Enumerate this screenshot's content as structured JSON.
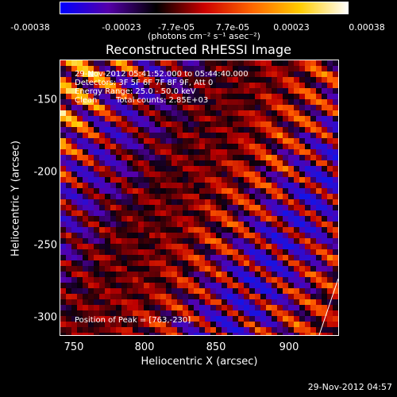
{
  "colorbar": {
    "ticks": [
      "-0.00038",
      "-0.00023",
      "-7.7e-05",
      "7.7e-05",
      "0.00023",
      "0.00038"
    ],
    "tick_values": [
      -0.00038,
      -0.00023,
      -7.7e-05,
      7.7e-05,
      0.00023,
      0.00038
    ],
    "range": [
      -0.00038,
      0.00038
    ],
    "unit": "(photons cm⁻² s⁻¹ asec⁻²)",
    "colors": [
      "#0000ff",
      "#5500aa",
      "#000000",
      "#cc0000",
      "#ff6600",
      "#ffcc00",
      "#ffffff"
    ]
  },
  "chart_data": {
    "type": "heatmap",
    "title": "Reconstructed RHESSI Image",
    "xlabel": "Heliocentric X (arcsec)",
    "ylabel": "Heliocentric Y (arcsec)",
    "xticks": [
      750,
      800,
      850,
      900
    ],
    "yticks": [
      -150,
      -200,
      -250,
      -300
    ],
    "xlim": [
      740,
      933
    ],
    "ylim": [
      -318,
      -127
    ],
    "annotations": {
      "time": "29-Nov-2012 05:41:52.000 to 05:44:40.000",
      "detectors": "Detectors: 3F 5F 6F 7F 8F 9F, Att 0",
      "energy": "Energy Range: 25.0 - 50.0 keV",
      "clean_label": "Clean",
      "counts": "Total counts: 2.85E+03",
      "peak": "Position of Peak = [763,-230]"
    },
    "peak_position": [
      763,
      -230
    ]
  },
  "footer": {
    "date": "29-Nov-2012 04:57"
  }
}
